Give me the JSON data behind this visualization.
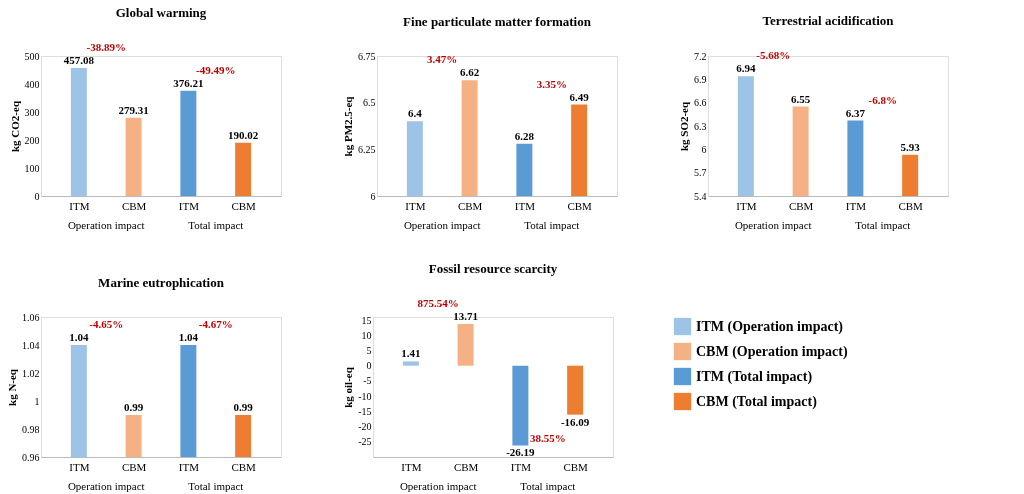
{
  "chart_data": [
    {
      "type": "bar",
      "title": "Global warming",
      "ylabel": "kg CO2-eq",
      "categories": [
        "ITM",
        "CBM",
        "ITM",
        "CBM"
      ],
      "data_labels": true,
      "ylim": [
        0,
        500
      ],
      "yticks": [
        0,
        100,
        200,
        300,
        400,
        500
      ],
      "series": [
        {
          "color": "#9dc3e6",
          "values": [
            457.08,
            null,
            null,
            null
          ]
        },
        {
          "color": "#f4b183",
          "values": [
            null,
            279.31,
            null,
            null
          ]
        },
        {
          "color": "#5b9bd5",
          "values": [
            null,
            null,
            376.21,
            null
          ]
        },
        {
          "color": "#ed7d31",
          "values": [
            null,
            null,
            null,
            190.02
          ]
        }
      ],
      "annotations": [
        "-38.89%",
        "-49.49%",
        "Operation impact",
        "Total impact"
      ]
    },
    {
      "type": "bar",
      "title": "Fine particulate matter formation",
      "ylabel": "kg PM2.5-eq",
      "categories": [
        "ITM",
        "CBM",
        "ITM",
        "CBM"
      ],
      "data_labels": true,
      "ylim": [
        6,
        6.75
      ],
      "yticks": [
        6,
        6.25,
        6.5,
        6.75
      ],
      "series": [
        {
          "color": "#9dc3e6",
          "values": [
            6.4,
            null,
            null,
            null
          ]
        },
        {
          "color": "#f4b183",
          "values": [
            null,
            6.62,
            null,
            null
          ]
        },
        {
          "color": "#5b9bd5",
          "values": [
            null,
            null,
            6.28,
            null
          ]
        },
        {
          "color": "#ed7d31",
          "values": [
            null,
            null,
            null,
            6.49
          ]
        }
      ],
      "annotations": [
        "3.47%",
        "3.35%",
        "Operation impact",
        "Total impact"
      ]
    },
    {
      "type": "bar",
      "title": "Terrestrial acidification",
      "ylabel": "kg SO2-eq",
      "categories": [
        "ITM",
        "CBM",
        "ITM",
        "CBM"
      ],
      "data_labels": true,
      "ylim": [
        5.4,
        7.2
      ],
      "yticks": [
        5.4,
        5.7,
        6,
        6.3,
        6.6,
        6.9,
        7.2
      ],
      "series": [
        {
          "color": "#9dc3e6",
          "values": [
            6.94,
            null,
            null,
            null
          ]
        },
        {
          "color": "#f4b183",
          "values": [
            null,
            6.55,
            null,
            null
          ]
        },
        {
          "color": "#5b9bd5",
          "values": [
            null,
            null,
            6.37,
            null
          ]
        },
        {
          "color": "#ed7d31",
          "values": [
            null,
            null,
            null,
            5.93
          ]
        }
      ],
      "annotations": [
        "-5.68%",
        "-6.8%",
        "Operation impact",
        "Total impact"
      ]
    },
    {
      "type": "bar",
      "title": "Marine eutrophication",
      "ylabel": "kg N-eq",
      "categories": [
        "ITM",
        "CBM",
        "ITM",
        "CBM"
      ],
      "data_labels": true,
      "ylim": [
        0.96,
        1.06
      ],
      "yticks": [
        0.96,
        0.98,
        1,
        1.02,
        1.04,
        1.06
      ],
      "series": [
        {
          "color": "#9dc3e6",
          "values": [
            1.04,
            null,
            null,
            null
          ]
        },
        {
          "color": "#f4b183",
          "values": [
            null,
            0.99,
            null,
            null
          ]
        },
        {
          "color": "#5b9bd5",
          "values": [
            null,
            null,
            1.04,
            null
          ]
        },
        {
          "color": "#ed7d31",
          "values": [
            null,
            null,
            null,
            0.99
          ]
        }
      ],
      "annotations": [
        "-4.65%",
        "-4.67%",
        "Operation impact",
        "Total impact"
      ]
    },
    {
      "type": "bar",
      "title": "Fossil resource scarcity",
      "ylabel": "kg oil-eq",
      "categories": [
        "ITM",
        "CBM",
        "ITM",
        "CBM"
      ],
      "data_labels": true,
      "ylim": [
        -30,
        16
      ],
      "yticks": [
        -25,
        -20,
        -15,
        -10,
        -5,
        0,
        5,
        10,
        15
      ],
      "legend": "right",
      "series": [
        {
          "name": "ITM (Operation impact)",
          "color": "#9dc3e6",
          "values": [
            1.41,
            null,
            null,
            null
          ]
        },
        {
          "name": "CBM (Operation impact)",
          "color": "#f4b183",
          "values": [
            null,
            13.71,
            null,
            null
          ]
        },
        {
          "name": "ITM (Total impact)",
          "color": "#5b9bd5",
          "values": [
            null,
            null,
            -26.19,
            null
          ]
        },
        {
          "name": "CBM (Total impact)",
          "color": "#ed7d31",
          "values": [
            null,
            null,
            null,
            -16.09
          ]
        }
      ],
      "annotations": [
        "875.54%",
        "38.55%",
        "Operation impact",
        "Total impact"
      ]
    }
  ]
}
